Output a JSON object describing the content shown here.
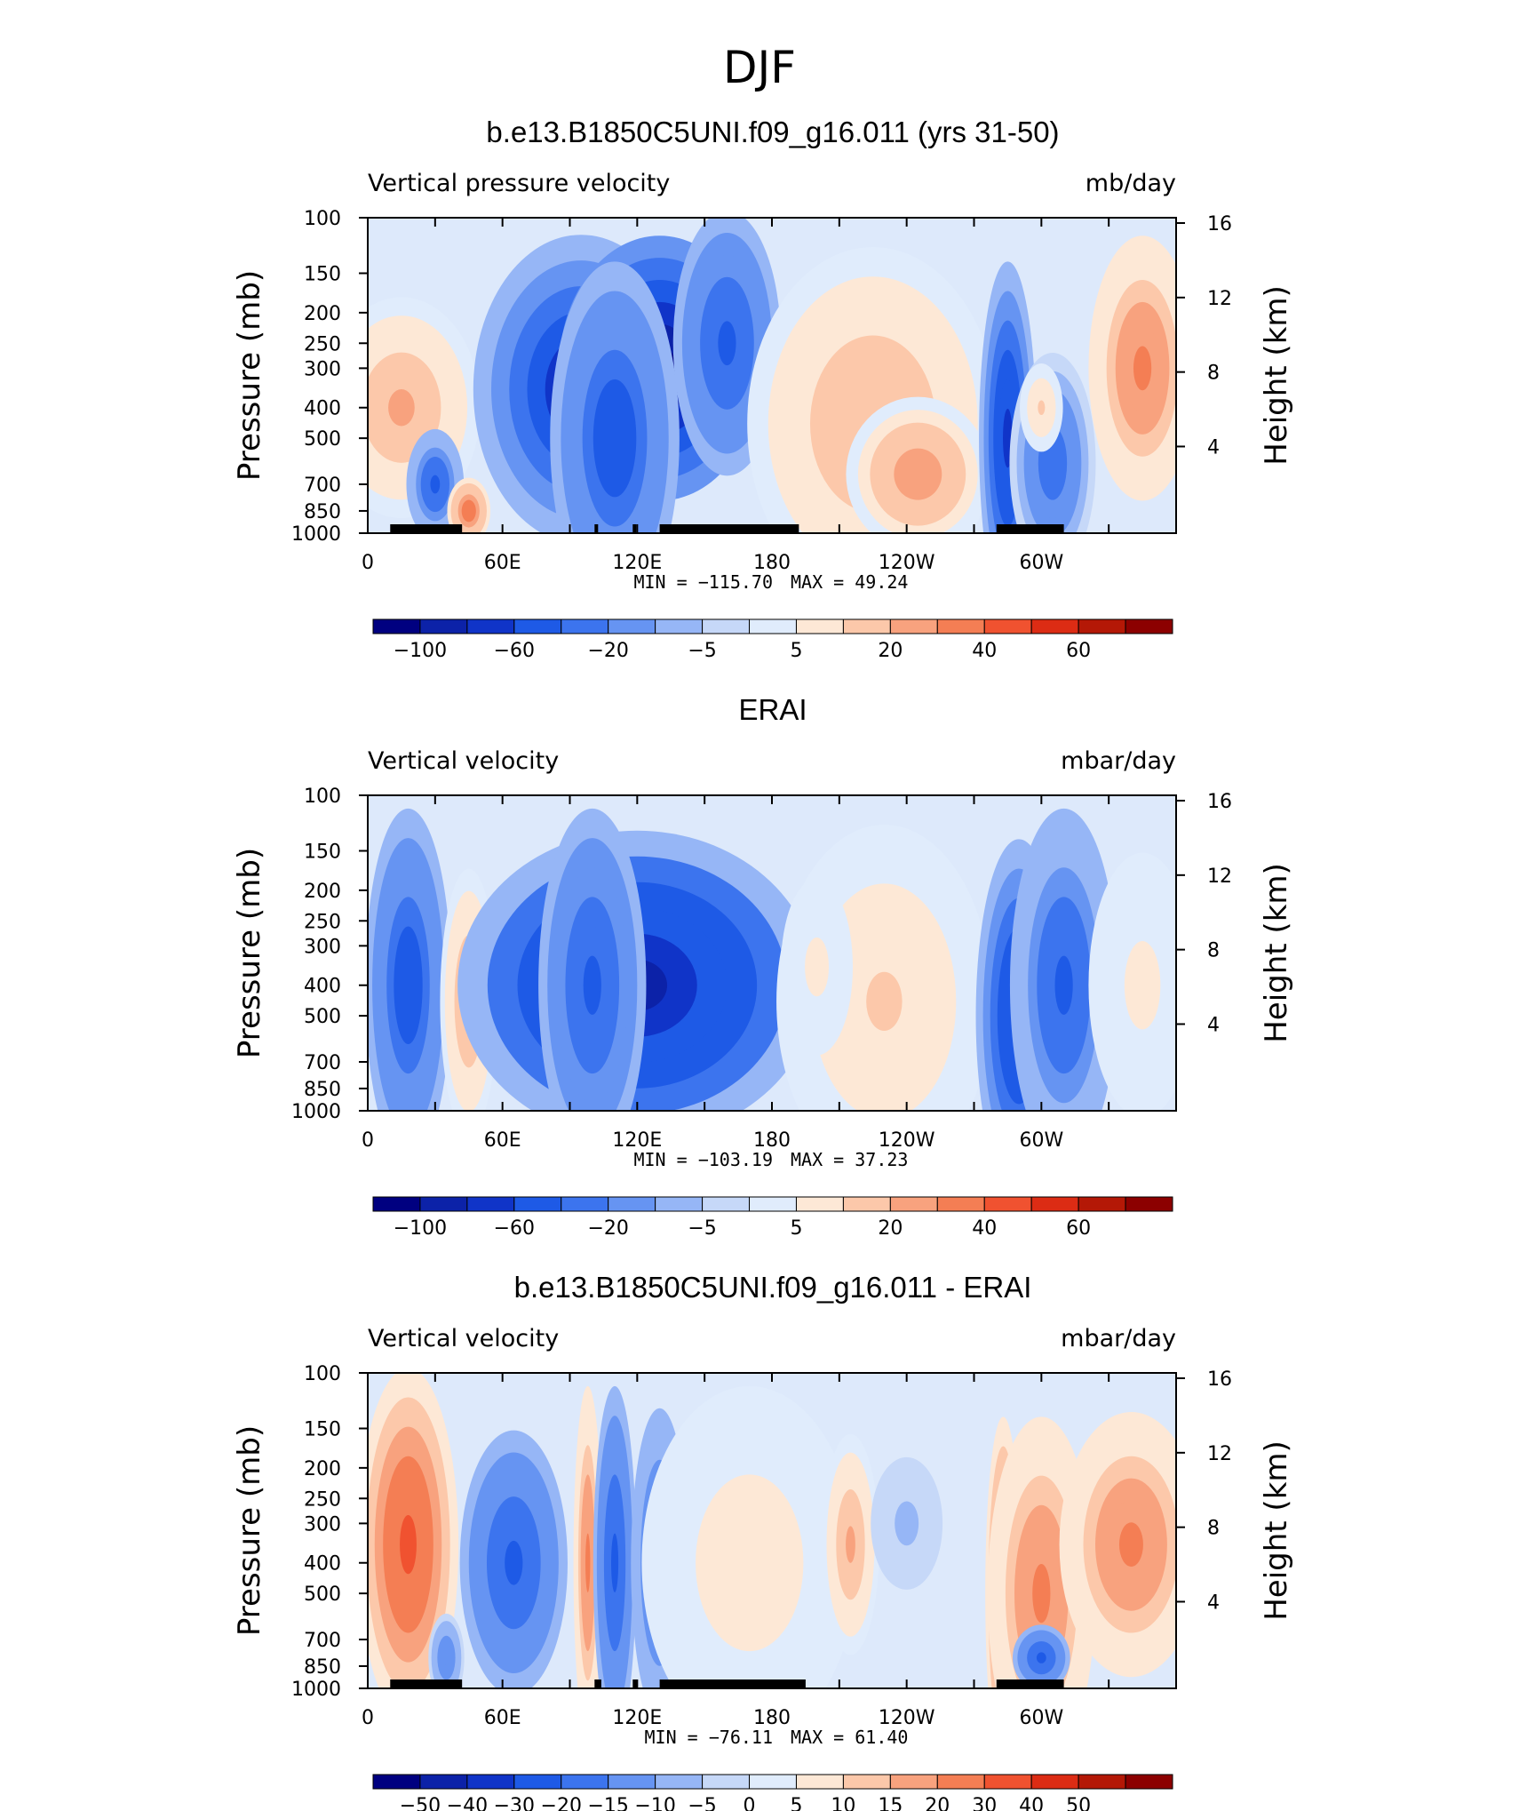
{
  "main_title": "DJF",
  "chart_data": [
    {
      "type": "heatmap",
      "title": "b.e13.B1850C5UNI.f09_g16.011 (yrs 31-50)",
      "left_label": "Vertical pressure velocity",
      "right_label": "mb/day",
      "ylabel": "Pressure (mb)",
      "y2label": "Height (km)",
      "x_ticks": [
        "0",
        "60E",
        "120E",
        "180",
        "120W",
        "60W"
      ],
      "y_ticks": [
        "100",
        "150",
        "200",
        "250",
        "300",
        "400",
        "500",
        "700",
        "850",
        "1000"
      ],
      "y_ticks_values": [
        100,
        150,
        200,
        250,
        300,
        400,
        500,
        700,
        850,
        1000
      ],
      "y2_ticks": [
        "16",
        "12",
        "8",
        "4"
      ],
      "min_label": "MIN =  −115.70",
      "max_label": "MAX =   49.24",
      "min": -115.7,
      "max": 49.24,
      "colorbar_labels": [
        "−100",
        "−60",
        "−20",
        "−5",
        "5",
        "20",
        "40",
        "60"
      ],
      "features": [
        {
          "lon": 15,
          "p": 400,
          "v": 25,
          "w": 22,
          "h": 0.5
        },
        {
          "lon": 30,
          "p": 700,
          "v": -35,
          "w": 8,
          "h": 0.25
        },
        {
          "lon": 45,
          "p": 850,
          "v": 45,
          "w": 6,
          "h": 0.15
        },
        {
          "lon": 95,
          "p": 350,
          "v": -65,
          "w": 30,
          "h": 0.7
        },
        {
          "lon": 130,
          "p": 300,
          "v": -85,
          "w": 28,
          "h": 0.6
        },
        {
          "lon": 110,
          "p": 500,
          "v": -45,
          "w": 18,
          "h": 0.8
        },
        {
          "lon": 160,
          "p": 250,
          "v": -40,
          "w": 15,
          "h": 0.6
        },
        {
          "lon": 225,
          "p": 450,
          "v": 22,
          "w": 35,
          "h": 0.8
        },
        {
          "lon": 245,
          "p": 650,
          "v": 32,
          "w": 20,
          "h": 0.35
        },
        {
          "lon": 285,
          "p": 500,
          "v": -55,
          "w": 8,
          "h": 0.8
        },
        {
          "lon": 305,
          "p": 600,
          "v": -30,
          "w": 12,
          "h": 0.5
        },
        {
          "lon": 345,
          "p": 300,
          "v": 35,
          "w": 15,
          "h": 0.6
        },
        {
          "lon": 300,
          "p": 400,
          "v": 15,
          "w": 6,
          "h": 0.2
        }
      ],
      "topography": [
        [
          10,
          42
        ],
        [
          34,
          40
        ],
        [
          101,
          102
        ],
        [
          118,
          119
        ],
        [
          130,
          192
        ],
        [
          280,
          310
        ]
      ]
    },
    {
      "type": "heatmap",
      "title": "ERAI",
      "left_label": "Vertical velocity",
      "right_label": "mbar/day",
      "ylabel": "Pressure (mb)",
      "y2label": "Height (km)",
      "x_ticks": [
        "0",
        "60E",
        "120E",
        "180",
        "120W",
        "60W"
      ],
      "y_ticks": [
        "100",
        "150",
        "200",
        "250",
        "300",
        "400",
        "500",
        "700",
        "850",
        "1000"
      ],
      "y_ticks_values": [
        100,
        150,
        200,
        250,
        300,
        400,
        500,
        700,
        850,
        1000
      ],
      "y2_ticks": [
        "16",
        "12",
        "8",
        "4"
      ],
      "min_label": "MIN =  −103.19",
      "max_label": "MAX =   37.23",
      "min": -103.19,
      "max": 37.23,
      "colorbar_labels": [
        "−100",
        "−60",
        "−20",
        "−5",
        "5",
        "20",
        "40",
        "60"
      ],
      "features": [
        {
          "lon": 18,
          "p": 400,
          "v": -45,
          "w": 12,
          "h": 0.8
        },
        {
          "lon": 45,
          "p": 450,
          "v": 25,
          "w": 8,
          "h": 0.6
        },
        {
          "lon": 120,
          "p": 400,
          "v": -70,
          "w": 50,
          "h": 0.7
        },
        {
          "lon": 100,
          "p": 400,
          "v": -40,
          "w": 15,
          "h": 0.8
        },
        {
          "lon": 230,
          "p": 450,
          "v": 15,
          "w": 30,
          "h": 0.8
        },
        {
          "lon": 200,
          "p": 350,
          "v": 8,
          "w": 10,
          "h": 0.4
        },
        {
          "lon": 290,
          "p": 500,
          "v": -55,
          "w": 12,
          "h": 0.8
        },
        {
          "lon": 310,
          "p": 400,
          "v": -35,
          "w": 15,
          "h": 0.8
        },
        {
          "lon": 345,
          "p": 400,
          "v": 8,
          "w": 15,
          "h": 0.6
        }
      ],
      "topography": []
    },
    {
      "type": "heatmap",
      "title": "b.e13.B1850C5UNI.f09_g16.011 - ERAI",
      "left_label": "Vertical velocity",
      "right_label": "mbar/day",
      "ylabel": "Pressure (mb)",
      "y2label": "Height (km)",
      "x_ticks": [
        "0",
        "60E",
        "120E",
        "180",
        "120W",
        "60W"
      ],
      "y_ticks": [
        "100",
        "150",
        "200",
        "250",
        "300",
        "400",
        "500",
        "700",
        "850",
        "1000"
      ],
      "y_ticks_values": [
        100,
        150,
        200,
        250,
        300,
        400,
        500,
        700,
        850,
        1000
      ],
      "y2_ticks": [
        "16",
        "12",
        "8",
        "4"
      ],
      "min_label": "MIN =  −76.11",
      "max_label": "MAX =   61.40",
      "min": -76.11,
      "max": 61.4,
      "colorbar_labels": [
        "−50",
        "−40",
        "−30",
        "−20",
        "−15",
        "−10",
        "−5",
        "0",
        "5",
        "10",
        "15",
        "20",
        "30",
        "40",
        "50"
      ],
      "features": [
        {
          "lon": 18,
          "p": 350,
          "v": 55,
          "w": 14,
          "h": 0.8
        },
        {
          "lon": 35,
          "p": 800,
          "v": -20,
          "w": 5,
          "h": 0.2
        },
        {
          "lon": 65,
          "p": 400,
          "v": -40,
          "w": 15,
          "h": 0.6
        },
        {
          "lon": 98,
          "p": 400,
          "v": 35,
          "w": 4,
          "h": 0.8
        },
        {
          "lon": 110,
          "p": 400,
          "v": -40,
          "w": 6,
          "h": 0.8
        },
        {
          "lon": 130,
          "p": 400,
          "v": -35,
          "w": 8,
          "h": 0.7
        },
        {
          "lon": 170,
          "p": 400,
          "v": 10,
          "w": 30,
          "h": 0.8
        },
        {
          "lon": 215,
          "p": 350,
          "v": 25,
          "w": 8,
          "h": 0.5
        },
        {
          "lon": 240,
          "p": 300,
          "v": -8,
          "w": 10,
          "h": 0.3
        },
        {
          "lon": 283,
          "p": 500,
          "v": 40,
          "w": 5,
          "h": 0.8
        },
        {
          "lon": 300,
          "p": 500,
          "v": 35,
          "w": 15,
          "h": 0.8
        },
        {
          "lon": 340,
          "p": 350,
          "v": 35,
          "w": 20,
          "h": 0.6
        },
        {
          "lon": 300,
          "p": 800,
          "v": -40,
          "w": 8,
          "h": 0.15
        }
      ],
      "topography": [
        [
          10,
          42
        ],
        [
          34,
          40
        ],
        [
          101,
          104
        ],
        [
          118,
          120
        ],
        [
          130,
          195
        ],
        [
          280,
          310
        ]
      ]
    }
  ],
  "colors": {
    "scale": [
      "#000080",
      "#0c22a8",
      "#1034c8",
      "#1e5ae6",
      "#3c74ee",
      "#6694f2",
      "#96b6f6",
      "#c6d8f8",
      "#e0ecfc",
      "#fde8d6",
      "#fcc8aa",
      "#f8a27e",
      "#f47e54",
      "#f05230",
      "#dc2c14",
      "#b41806",
      "#8c0000"
    ]
  }
}
